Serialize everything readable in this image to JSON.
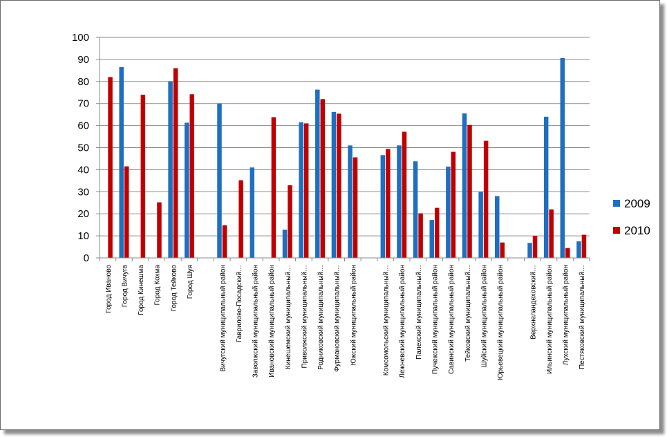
{
  "chart_data": {
    "type": "bar",
    "categories": [
      "Город Иваново",
      "Город Вичуга",
      "Город Кинешма",
      "Город Кохма",
      "Город Тейково",
      "Город Шуя",
      "",
      "Вичугский муниципальный район",
      "Гаврилово-Посадский…",
      "Заволжский муниципальный район",
      "Ивановский муниципальный район",
      "Кинешемский муниципальный…",
      "Приволжский муниципальный…",
      "Родниковский муниципальный…",
      "Фурмановский муниципальный…",
      "Южский муниципальный район",
      "",
      "Комсомольский муниципальный…",
      "Лежневский муниципальный район",
      "Палехский муниципальный…",
      "Пучежский муниципальный район",
      "Савинский муниципальный район",
      "Тейковский муниципальный…",
      "Шуйский муниципальный район",
      "Юрьевецкий муниципальный район",
      "",
      "Верхнеландеховский…",
      "Ильинский муниципальный район",
      "Лухский муниципальный район",
      "Пестяковский муниципальный…"
    ],
    "series": [
      {
        "name": "2009",
        "color": "#1e6fc0",
        "values": [
          0,
          86.5,
          0,
          0,
          80,
          61.3,
          null,
          70,
          0,
          41,
          0,
          12.8,
          61.5,
          76.3,
          66.2,
          51,
          null,
          46.6,
          51,
          43.8,
          17.2,
          41.4,
          65.5,
          30,
          28,
          null,
          6.8,
          64,
          90.6,
          7.5
        ]
      },
      {
        "name": "2010",
        "color": "#c00000",
        "values": [
          82,
          41.5,
          74,
          25.2,
          86,
          74.2,
          null,
          14.8,
          35.2,
          0,
          63.8,
          33,
          61,
          72,
          65.4,
          45.6,
          null,
          49.4,
          57.2,
          20.2,
          22.7,
          48.1,
          60.3,
          53.1,
          7,
          null,
          10,
          22,
          4.5,
          10.5
        ]
      }
    ],
    "ylim": [
      0,
      100
    ],
    "yticks": [
      0,
      10,
      20,
      30,
      40,
      50,
      60,
      70,
      80,
      90,
      100
    ],
    "grid": true,
    "legend": "right"
  }
}
